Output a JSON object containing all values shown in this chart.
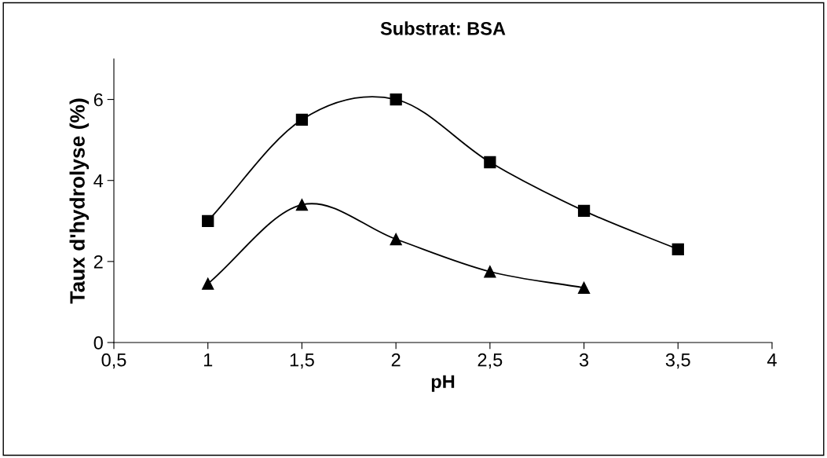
{
  "chart_data": {
    "type": "line",
    "title": "Substrat: BSA",
    "xlabel": "pH",
    "ylabel": "Taux d'hydrolyse (%)",
    "xlim": [
      0.5,
      4
    ],
    "xticks": [
      {
        "value": 0.5,
        "label": "0,5"
      },
      1,
      {
        "value": 1.5,
        "label": "1,5"
      },
      2,
      {
        "value": 2.5,
        "label": "2,5"
      },
      3,
      {
        "value": 3.5,
        "label": "3,5"
      },
      4
    ],
    "ylim": [
      0,
      7
    ],
    "yticks": [
      0,
      2,
      4,
      6
    ],
    "grid": false,
    "legend": false,
    "series": [
      {
        "color": "#000000",
        "marker": "square",
        "x": [
          1,
          1.5,
          2,
          2.5,
          3,
          3.5
        ],
        "values": [
          3.0,
          5.5,
          6.0,
          4.45,
          3.25,
          2.3
        ]
      },
      {
        "color": "#000000",
        "marker": "triangle",
        "x": [
          1,
          1.5,
          2,
          2.5,
          3
        ],
        "values": [
          1.45,
          3.4,
          2.55,
          1.75,
          1.35
        ]
      }
    ]
  }
}
